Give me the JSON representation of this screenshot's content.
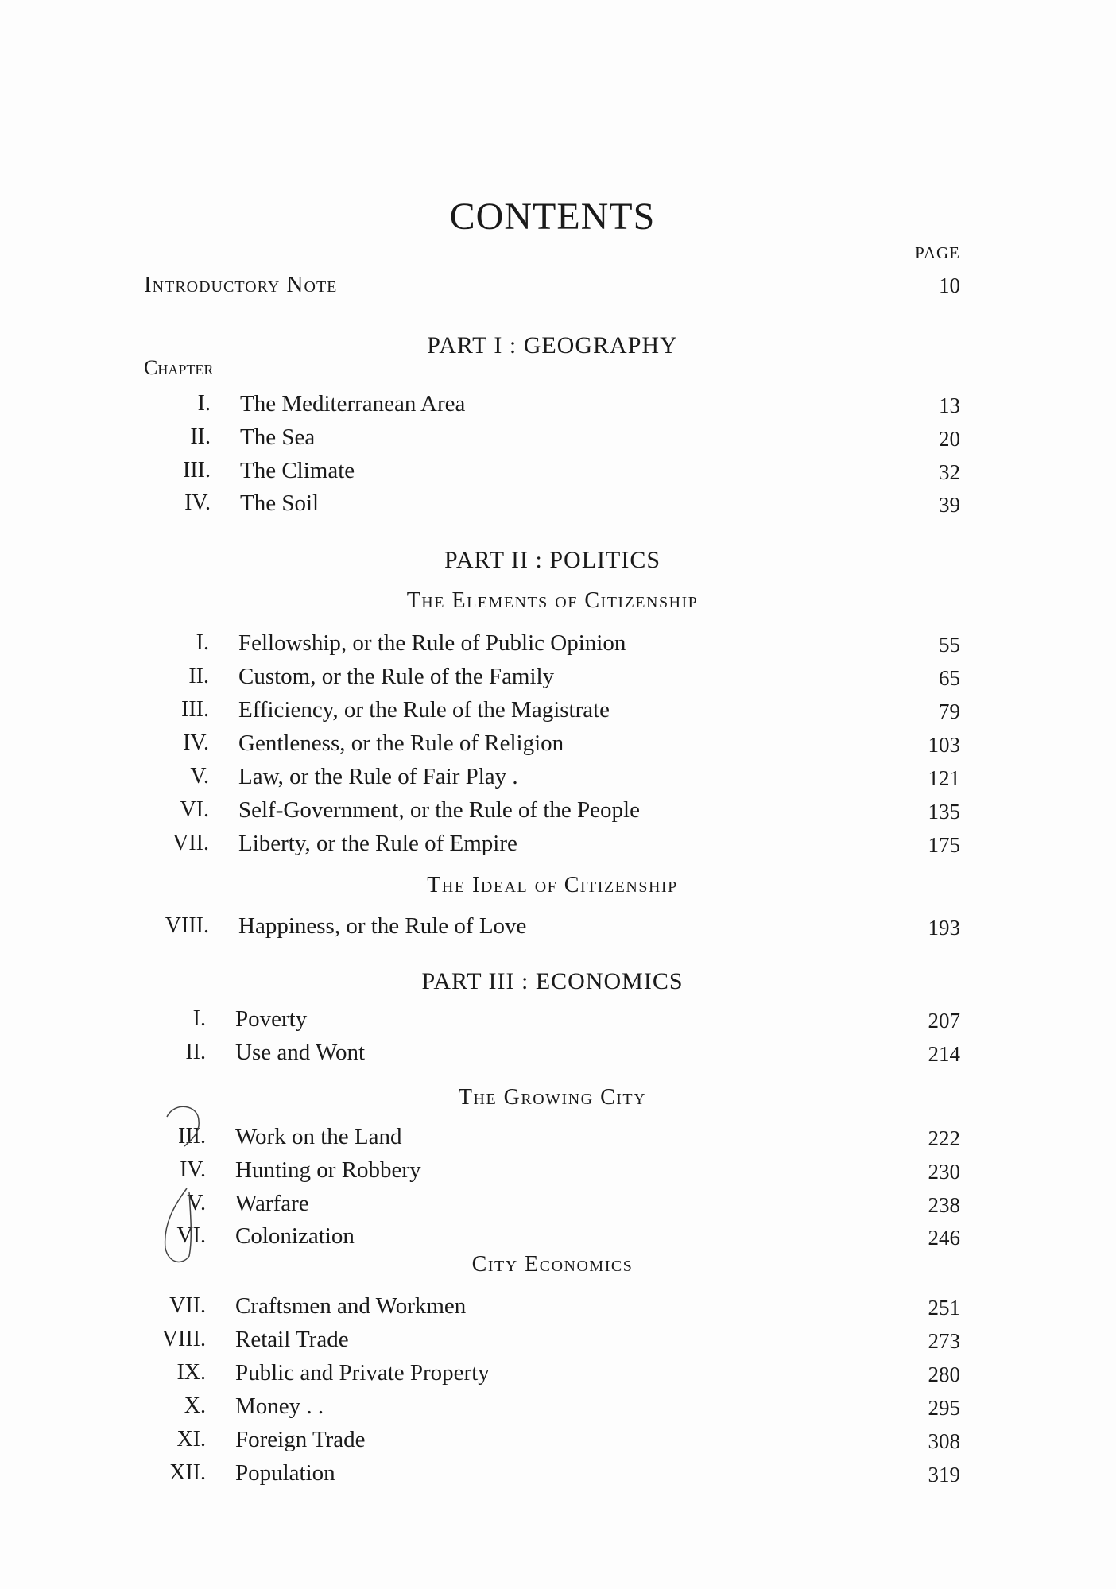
{
  "title": "CONTENTS",
  "page_header": "PAGE",
  "introductory_note": {
    "label": "Introductory Note",
    "page": "10"
  },
  "chapter_label": "Chapter",
  "parts": [
    {
      "heading": "PART I : GEOGRAPHY",
      "sections": [
        {
          "subheading": "",
          "chapters": [
            {
              "num": "I.",
              "title": "The Mediterranean Area",
              "page": "13"
            },
            {
              "num": "II.",
              "title": "The Sea",
              "page": "20"
            },
            {
              "num": "III.",
              "title": "The Climate",
              "page": "32"
            },
            {
              "num": "IV.",
              "title": "The Soil",
              "page": "39"
            }
          ]
        }
      ]
    },
    {
      "heading": "PART II : POLITICS",
      "sections": [
        {
          "subheading": "The Elements of Citizenship",
          "chapters": [
            {
              "num": "I.",
              "title": "Fellowship, or the Rule of Public Opinion",
              "page": "55"
            },
            {
              "num": "II.",
              "title": "Custom, or the Rule of the Family",
              "page": "65"
            },
            {
              "num": "III.",
              "title": "Efficiency, or the Rule of the Magistrate",
              "page": "79"
            },
            {
              "num": "IV.",
              "title": "Gentleness, or the Rule of Religion",
              "page": "103"
            },
            {
              "num": "V.",
              "title": "Law, or the Rule of Fair Play      .",
              "page": "121"
            },
            {
              "num": "VI.",
              "title": "Self-Government, or the Rule of the People",
              "page": "135"
            },
            {
              "num": "VII.",
              "title": "Liberty, or the Rule of Empire",
              "page": "175"
            }
          ]
        },
        {
          "subheading": "The Ideal of Citizenship",
          "chapters": [
            {
              "num": "VIII.",
              "title": "Happiness, or the Rule of Love",
              "page": "193"
            }
          ]
        }
      ]
    },
    {
      "heading": "PART III : ECONOMICS",
      "sections": [
        {
          "subheading": "",
          "chapters": [
            {
              "num": "I.",
              "title": "Poverty",
              "page": "207"
            },
            {
              "num": "II.",
              "title": "Use and Wont",
              "page": "214"
            }
          ]
        },
        {
          "subheading": "The Growing City",
          "chapters": [
            {
              "num": "III.",
              "title": "Work on the Land",
              "page": "222"
            },
            {
              "num": "IV.",
              "title": "Hunting or Robbery",
              "page": "230"
            },
            {
              "num": "V.",
              "title": "Warfare",
              "page": "238"
            },
            {
              "num": "VI.",
              "title": "Colonization",
              "page": "246"
            }
          ]
        },
        {
          "subheading": "City Economics",
          "chapters": [
            {
              "num": "VII.",
              "title": "Craftsmen and Workmen",
              "page": "251"
            },
            {
              "num": "VIII.",
              "title": "Retail Trade",
              "page": "273"
            },
            {
              "num": "IX.",
              "title": "Public and Private Property",
              "page": "280"
            },
            {
              "num": "X.",
              "title": "Money .       .",
              "page": "295"
            },
            {
              "num": "XI.",
              "title": "Foreign Trade",
              "page": "308"
            },
            {
              "num": "XII.",
              "title": "Population",
              "page": "319"
            }
          ]
        }
      ]
    }
  ]
}
